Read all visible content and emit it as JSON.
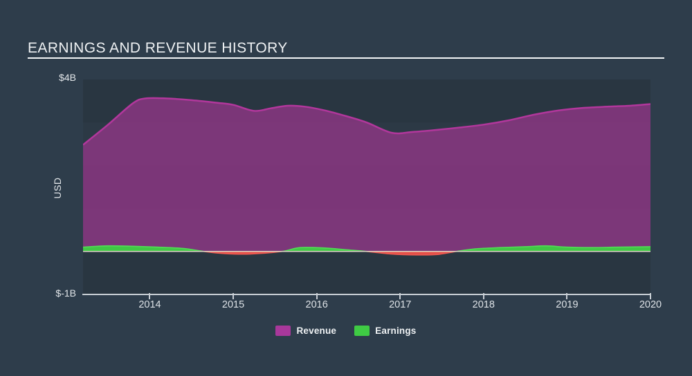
{
  "title": "EARNINGS AND REVENUE HISTORY",
  "axes": {
    "y_top_label": "$4B",
    "y_bottom_label": "$-1B",
    "y_axis_title": "USD"
  },
  "legend": [
    {
      "label": "Revenue",
      "color": "#a8389b"
    },
    {
      "label": "Earnings",
      "color": "#3fcb44"
    }
  ],
  "colors": {
    "page_background": "#2e3d4b",
    "plot_background": "#2c3945",
    "plot_band_shade": "rgba(0,0,0,0.05)",
    "revenue_line": "#b2379c",
    "revenue_fill": "rgba(178,55,156,0.60)",
    "earnings_positive_fill": "#40c845",
    "earnings_positive_line": "#52dd55",
    "earnings_negative_fill": "#e64f47",
    "earnings_negative_line": "#f05a52",
    "zero_line": "#dcd7c5",
    "axis_line": "#c9cfd5",
    "tick_text": "#dde2e6",
    "title_text": "#eef1f3"
  },
  "chart_data": {
    "type": "area",
    "title": "EARNINGS AND REVENUE HISTORY",
    "xlabel": "",
    "ylabel": "USD",
    "units": "USD billions",
    "xlim": [
      2013.2,
      2020.0
    ],
    "ylim": [
      -1,
      4
    ],
    "grid": false,
    "legend_position": "bottom-center",
    "x_ticks": [
      2014,
      2015,
      2016,
      2017,
      2018,
      2019,
      2020
    ],
    "x_tick_labels": [
      "2014",
      "2015",
      "2016",
      "2017",
      "2018",
      "2019",
      "2020"
    ],
    "y_tick_labels": [
      "$-1B",
      "$4B"
    ],
    "series": [
      {
        "name": "Revenue",
        "style": "area-to-zero",
        "x": [
          2013.2,
          2013.5,
          2013.8,
          2013.95,
          2014.2,
          2014.5,
          2014.8,
          2015.0,
          2015.25,
          2015.45,
          2015.65,
          2015.85,
          2016.1,
          2016.35,
          2016.6,
          2016.9,
          2017.15,
          2017.4,
          2017.7,
          2018.0,
          2018.3,
          2018.6,
          2018.9,
          2019.2,
          2019.5,
          2019.75,
          2020.0
        ],
        "values": [
          2.48,
          2.95,
          3.45,
          3.56,
          3.56,
          3.52,
          3.46,
          3.41,
          3.27,
          3.33,
          3.39,
          3.37,
          3.28,
          3.15,
          3.0,
          2.76,
          2.78,
          2.82,
          2.88,
          2.95,
          3.05,
          3.18,
          3.28,
          3.34,
          3.37,
          3.39,
          3.43
        ]
      },
      {
        "name": "Earnings",
        "style": "area-to-zero-signed",
        "x": [
          2013.2,
          2013.5,
          2013.8,
          2014.1,
          2014.4,
          2014.65,
          2014.9,
          2015.2,
          2015.58,
          2015.8,
          2016.1,
          2016.35,
          2016.6,
          2016.9,
          2017.2,
          2017.45,
          2017.67,
          2017.9,
          2018.2,
          2018.5,
          2018.75,
          2019.0,
          2019.3,
          2019.6,
          2020.0
        ],
        "values": [
          0.1,
          0.13,
          0.12,
          0.1,
          0.07,
          0.0,
          -0.05,
          -0.06,
          0.0,
          0.09,
          0.08,
          0.04,
          0.0,
          -0.06,
          -0.08,
          -0.07,
          0.0,
          0.06,
          0.09,
          0.11,
          0.13,
          0.1,
          0.09,
          0.1,
          0.11
        ]
      }
    ]
  }
}
